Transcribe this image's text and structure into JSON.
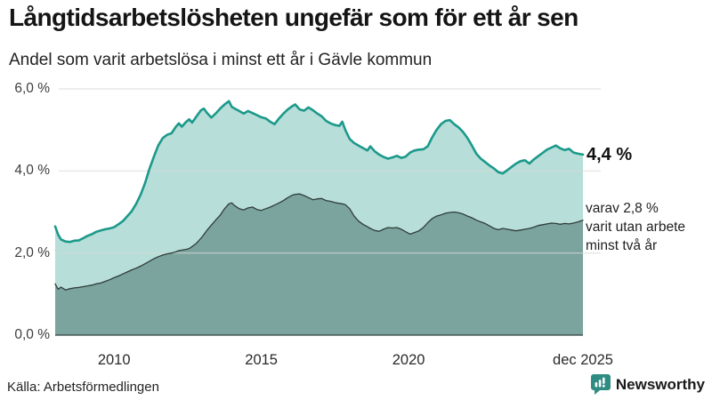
{
  "header": {
    "title": "Långtidsarbetslösheten ungefär som för ett år sen",
    "subtitle": "Andel som varit arbetslösa i minst ett år i Gävle kommun"
  },
  "annotations": {
    "latest_value": "4,4 %",
    "secondary": "varav 2,8 %\nvarit utan arbete\nminst två år"
  },
  "footer": {
    "source": "Källa: Arbetsförmedlingen",
    "brand": "Newsworthy"
  },
  "colors": {
    "accent_teal": "#1b998b",
    "fill_light": "#b7ded8",
    "fill_dark": "#7ba49e",
    "stroke_dark": "#2f3d3a",
    "grid": "#d9d9d9",
    "brand_teal": "#2e8c83",
    "text": "#1a1a1a"
  },
  "chart_data": {
    "type": "area",
    "title": "Långtidsarbetslösheten ungefär som för ett år sen",
    "subtitle": "Andel som varit arbetslösa i minst ett år i Gävle kommun",
    "unit": "%",
    "grid": true,
    "xlim": [
      2008.0,
      2025.92
    ],
    "ylim": [
      0,
      6
    ],
    "x_ticks": [
      {
        "x": 2010,
        "label": "2010"
      },
      {
        "x": 2015,
        "label": "2015"
      },
      {
        "x": 2020,
        "label": "2020"
      },
      {
        "x": 2025.92,
        "label": "dec 2025"
      }
    ],
    "y_ticks": [
      {
        "v": 0,
        "label": "0,0 %"
      },
      {
        "v": 2,
        "label": "2,0 %"
      },
      {
        "v": 4,
        "label": "4,0 %"
      },
      {
        "v": 6,
        "label": "6,0 %"
      }
    ],
    "x": [
      2008.0,
      2008.1,
      2008.2,
      2008.35,
      2008.5,
      2008.65,
      2008.8,
      2008.95,
      2009.1,
      2009.25,
      2009.4,
      2009.55,
      2009.7,
      2009.85,
      2010.0,
      2010.15,
      2010.3,
      2010.45,
      2010.6,
      2010.75,
      2010.9,
      2011.05,
      2011.2,
      2011.35,
      2011.5,
      2011.65,
      2011.8,
      2011.95,
      2012.1,
      2012.2,
      2012.3,
      2012.45,
      2012.55,
      2012.65,
      2012.8,
      2012.95,
      2013.05,
      2013.15,
      2013.3,
      2013.45,
      2013.6,
      2013.75,
      2013.9,
      2014.0,
      2014.1,
      2014.25,
      2014.4,
      2014.55,
      2014.7,
      2014.85,
      2015.0,
      2015.15,
      2015.3,
      2015.45,
      2015.6,
      2015.75,
      2015.9,
      2016.05,
      2016.15,
      2016.3,
      2016.45,
      2016.6,
      2016.75,
      2016.9,
      2017.05,
      2017.2,
      2017.35,
      2017.5,
      2017.65,
      2017.75,
      2017.85,
      2018.0,
      2018.15,
      2018.3,
      2018.45,
      2018.6,
      2018.7,
      2018.85,
      2019.0,
      2019.15,
      2019.3,
      2019.45,
      2019.6,
      2019.75,
      2019.9,
      2020.05,
      2020.2,
      2020.35,
      2020.5,
      2020.65,
      2020.8,
      2020.95,
      2021.1,
      2021.25,
      2021.4,
      2021.55,
      2021.7,
      2021.85,
      2022.0,
      2022.15,
      2022.3,
      2022.45,
      2022.6,
      2022.75,
      2022.9,
      2023.05,
      2023.2,
      2023.35,
      2023.5,
      2023.65,
      2023.8,
      2023.95,
      2024.1,
      2024.25,
      2024.4,
      2024.55,
      2024.7,
      2024.85,
      2025.0,
      2025.15,
      2025.3,
      2025.45,
      2025.6,
      2025.75,
      2025.92
    ],
    "series": [
      {
        "name": "Andel som varit arbetslösa minst ett år",
        "line_color": "#1b998b",
        "fill_color": "#b7ded8",
        "line_width": 2.6,
        "values": [
          2.65,
          2.45,
          2.33,
          2.28,
          2.27,
          2.3,
          2.31,
          2.36,
          2.42,
          2.46,
          2.52,
          2.55,
          2.58,
          2.6,
          2.63,
          2.7,
          2.78,
          2.9,
          3.02,
          3.2,
          3.42,
          3.7,
          4.05,
          4.35,
          4.62,
          4.8,
          4.88,
          4.92,
          5.08,
          5.16,
          5.08,
          5.2,
          5.26,
          5.18,
          5.33,
          5.48,
          5.52,
          5.42,
          5.3,
          5.4,
          5.52,
          5.62,
          5.7,
          5.56,
          5.52,
          5.46,
          5.4,
          5.46,
          5.41,
          5.36,
          5.31,
          5.28,
          5.2,
          5.14,
          5.28,
          5.4,
          5.5,
          5.58,
          5.62,
          5.5,
          5.47,
          5.55,
          5.48,
          5.4,
          5.33,
          5.22,
          5.16,
          5.12,
          5.1,
          5.2,
          5.0,
          4.78,
          4.68,
          4.62,
          4.56,
          4.5,
          4.6,
          4.48,
          4.4,
          4.34,
          4.3,
          4.33,
          4.37,
          4.32,
          4.35,
          4.45,
          4.5,
          4.52,
          4.53,
          4.6,
          4.82,
          5.0,
          5.14,
          5.22,
          5.24,
          5.14,
          5.06,
          4.95,
          4.8,
          4.62,
          4.42,
          4.3,
          4.22,
          4.13,
          4.06,
          3.97,
          3.94,
          4.02,
          4.1,
          4.18,
          4.24,
          4.26,
          4.18,
          4.28,
          4.36,
          4.44,
          4.52,
          4.57,
          4.62,
          4.55,
          4.51,
          4.54,
          4.45,
          4.42,
          4.4
        ]
      },
      {
        "name": "varav utan arbete minst två år",
        "line_color": "#2f3d3a",
        "fill_color": "#7ba49e",
        "line_width": 1.3,
        "values": [
          1.25,
          1.12,
          1.17,
          1.1,
          1.13,
          1.15,
          1.16,
          1.18,
          1.2,
          1.22,
          1.25,
          1.27,
          1.31,
          1.35,
          1.4,
          1.44,
          1.49,
          1.54,
          1.59,
          1.63,
          1.68,
          1.74,
          1.8,
          1.86,
          1.91,
          1.95,
          1.98,
          2.0,
          2.03,
          2.06,
          2.07,
          2.09,
          2.11,
          2.16,
          2.24,
          2.36,
          2.45,
          2.55,
          2.68,
          2.8,
          2.92,
          3.08,
          3.2,
          3.22,
          3.15,
          3.08,
          3.05,
          3.1,
          3.12,
          3.06,
          3.04,
          3.08,
          3.12,
          3.17,
          3.22,
          3.28,
          3.35,
          3.41,
          3.43,
          3.44,
          3.4,
          3.35,
          3.3,
          3.32,
          3.33,
          3.28,
          3.26,
          3.23,
          3.21,
          3.2,
          3.18,
          3.08,
          2.9,
          2.78,
          2.7,
          2.64,
          2.6,
          2.55,
          2.53,
          2.58,
          2.62,
          2.61,
          2.62,
          2.58,
          2.52,
          2.46,
          2.5,
          2.54,
          2.62,
          2.74,
          2.84,
          2.9,
          2.93,
          2.97,
          2.99,
          3.0,
          2.98,
          2.95,
          2.9,
          2.86,
          2.8,
          2.76,
          2.72,
          2.66,
          2.6,
          2.57,
          2.6,
          2.58,
          2.56,
          2.54,
          2.56,
          2.58,
          2.6,
          2.63,
          2.67,
          2.69,
          2.71,
          2.73,
          2.72,
          2.7,
          2.72,
          2.71,
          2.73,
          2.76,
          2.8
        ]
      }
    ]
  }
}
